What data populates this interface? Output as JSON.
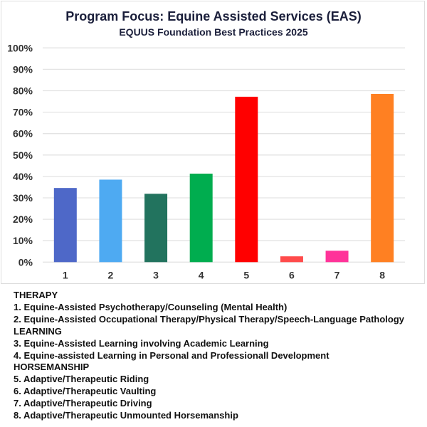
{
  "chart_data": {
    "type": "bar",
    "title": "Program Focus: Equine Assisted Services (EAS)",
    "subtitle": "EQUUS Foundation Best Practices 2025",
    "categories": [
      "1",
      "2",
      "3",
      "4",
      "5",
      "6",
      "7",
      "8"
    ],
    "values": [
      34.6,
      38.5,
      31.9,
      41.3,
      77.2,
      2.7,
      5.3,
      78.5
    ],
    "colors": [
      "#4e68c8",
      "#4eaaf2",
      "#22735e",
      "#00ad4f",
      "#ff0000",
      "#ff4b4b",
      "#ff3399",
      "#ff8022"
    ],
    "ylim": [
      0,
      100
    ],
    "yticks": [
      "0%",
      "10%",
      "20%",
      "30%",
      "40%",
      "50%",
      "60%",
      "70%",
      "80%",
      "90%",
      "100%"
    ],
    "grid": true,
    "xlabel": "",
    "ylabel": ""
  },
  "legend": [
    {
      "text": "THERAPY",
      "heading": true
    },
    {
      "text": "1. Equine-Assisted Psychotherapy/Counseling (Mental Health)"
    },
    {
      "text": "2. Equine-Assisted Occupational Therapy/Physical Therapy/Speech-Language Pathology"
    },
    {
      "text": "LEARNING",
      "heading": true
    },
    {
      "text": "3. Equine-Assisted Learning involving Academic Learning"
    },
    {
      "text": "4. Equine-assisted Learning in Personal and Professionall Development"
    },
    {
      "text": "HORSEMANSHIP",
      "heading": true
    },
    {
      "text": "5. Adaptive/Therapeutic Riding"
    },
    {
      "text": "6. Adaptive/Therapeutic Vaulting"
    },
    {
      "text": "7. Adaptive/Therapeutic Driving"
    },
    {
      "text": "8. Adaptive/Therapeutic Unmounted Horsemanship"
    }
  ]
}
